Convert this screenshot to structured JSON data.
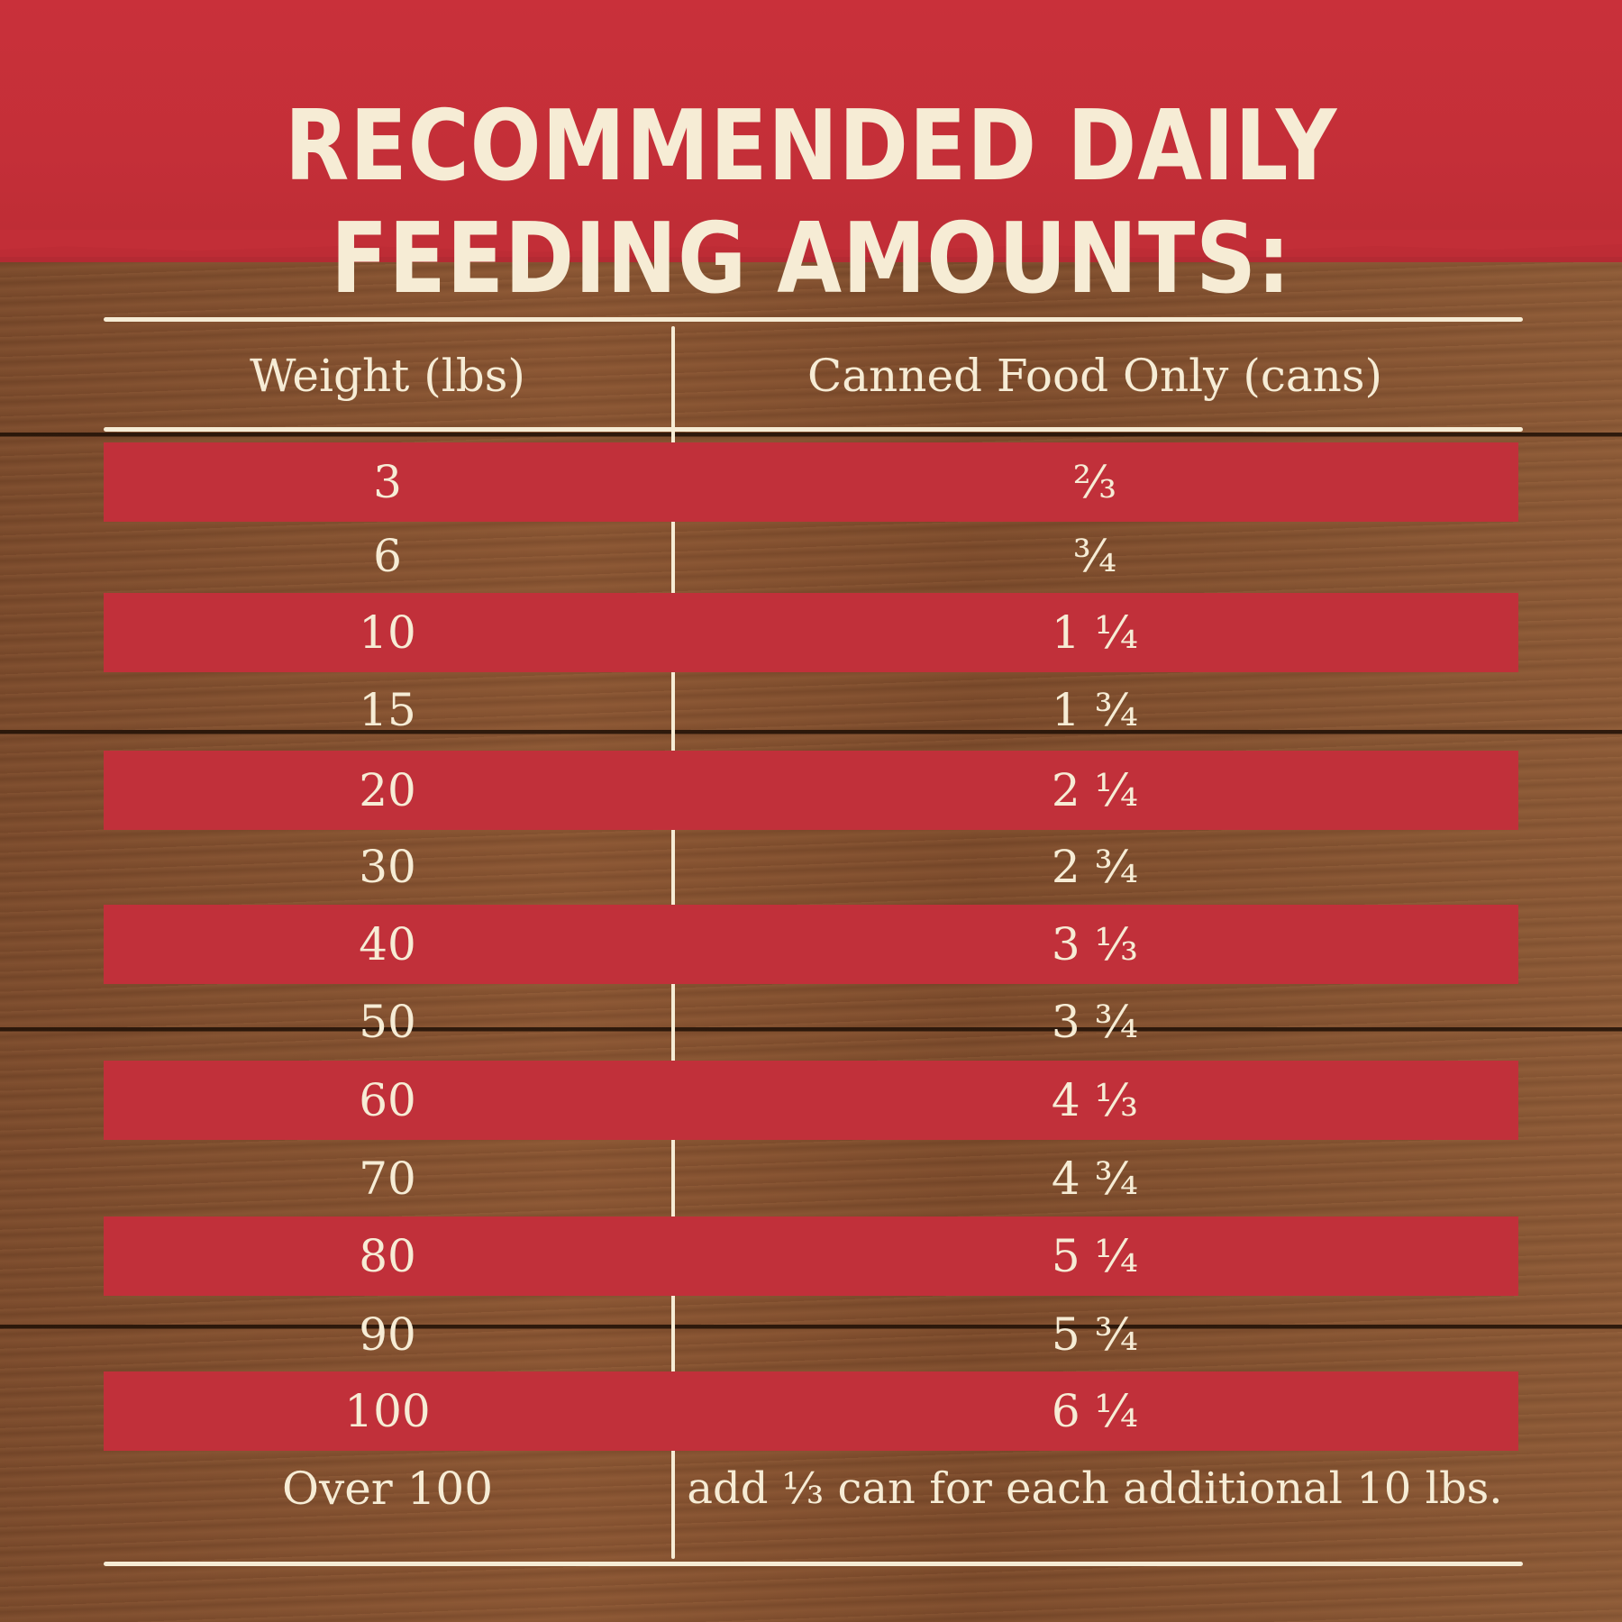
{
  "title": "RECOMMENDED DAILY FEEDING AMOUNTS:",
  "table": {
    "headers": {
      "weight": "Weight (lbs)",
      "cans": "Canned Food Only (cans)"
    },
    "rows": [
      {
        "weight": "3",
        "cans": "⅔"
      },
      {
        "weight": "6",
        "cans": "¾"
      },
      {
        "weight": "10",
        "cans": "1 ¼"
      },
      {
        "weight": "15",
        "cans": "1 ¾"
      },
      {
        "weight": "20",
        "cans": "2 ¼"
      },
      {
        "weight": "30",
        "cans": "2 ¾"
      },
      {
        "weight": "40",
        "cans": "3 ⅓"
      },
      {
        "weight": "50",
        "cans": "3 ¾"
      },
      {
        "weight": "60",
        "cans": "4 ⅓"
      },
      {
        "weight": "70",
        "cans": "4 ¾"
      },
      {
        "weight": "80",
        "cans": "5 ¼"
      },
      {
        "weight": "90",
        "cans": "5 ¾"
      },
      {
        "weight": "100",
        "cans": "6 ¼"
      },
      {
        "weight": "Over 100",
        "cans": "add ⅓ can for each additional 10 lbs."
      }
    ]
  },
  "colors": {
    "red": "#c1303a",
    "wood": "#7b4a2b",
    "cream": "#f6ecd5"
  }
}
